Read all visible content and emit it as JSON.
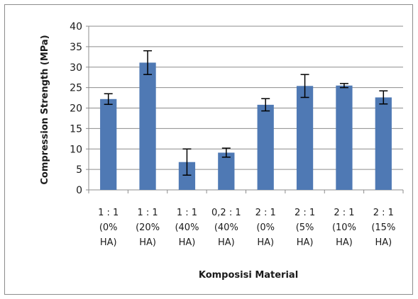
{
  "chart_data": {
    "type": "bar",
    "title": "",
    "xlabel": "Komposisi Material",
    "ylabel": "Compression Strength (MPa)",
    "ylim": [
      0,
      40
    ],
    "yticks": [
      0,
      5,
      10,
      15,
      20,
      25,
      30,
      35,
      40
    ],
    "grid": true,
    "legend": "none",
    "categories": [
      [
        "1 : 1",
        "(0%",
        "HA)"
      ],
      [
        "1 : 1",
        "(20%",
        "HA)"
      ],
      [
        "1 : 1",
        "(40%",
        "HA)"
      ],
      [
        "0,2 : 1",
        "(40%",
        "HA)"
      ],
      [
        "2 : 1",
        "(0%",
        "HA)"
      ],
      [
        "2 : 1",
        "(5%",
        "HA)"
      ],
      [
        "2 : 1",
        "(10%",
        "HA)"
      ],
      [
        "2 : 1",
        "(15%",
        "HA)"
      ]
    ],
    "series": [
      {
        "values": [
          22.2,
          31.1,
          6.8,
          9.1,
          20.8,
          25.4,
          25.5,
          22.6
        ],
        "error_plus": [
          1.3,
          2.9,
          3.2,
          1.1,
          1.5,
          2.8,
          0.5,
          1.6
        ],
        "error_minus": [
          1.3,
          2.9,
          3.2,
          1.1,
          1.5,
          2.8,
          0.5,
          1.6
        ]
      }
    ],
    "colors": {
      "bar": "#4f79b4",
      "error": "#000000",
      "grid": "#8c8c8c"
    }
  }
}
